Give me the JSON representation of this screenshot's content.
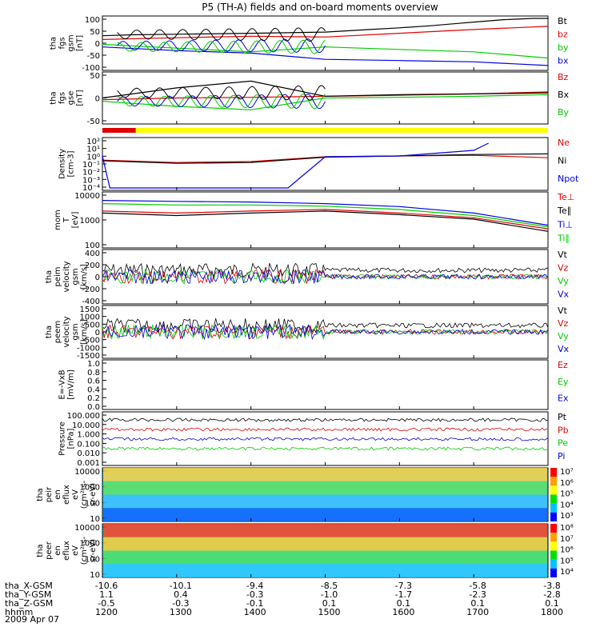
{
  "title": "P5 (TH-A) fields and on-board moments overview",
  "date": "2009 Apr 07",
  "orbit": {
    "labels": [
      "tha_X-GSM",
      "tha_Y-GSM",
      "tha_Z-GSM",
      "hhmm"
    ],
    "columns": [
      [
        "-10.6",
        "1.1",
        "-0.5",
        "1200"
      ],
      [
        "-10.1",
        "0.4",
        "-0.3",
        "1300"
      ],
      [
        "-9.4",
        "-0.3",
        "-0.1",
        "1400"
      ],
      [
        "-8.5",
        "-1.0",
        "0.1",
        "1500"
      ],
      [
        "-7.3",
        "-1.7",
        "0.1",
        "1600"
      ],
      [
        "-5.8",
        "-2.3",
        "0.1",
        "1700"
      ],
      [
        "-3.8",
        "-2.8",
        "0.1",
        "1800"
      ]
    ]
  },
  "colors": {
    "black": "#000000",
    "red": "#e00000",
    "green": "#00cc00",
    "blue": "#0000e0",
    "yellow": "#ffff00"
  },
  "chart_data": [
    {
      "type": "line",
      "ylabel": [
        "tha",
        "fgs",
        "gsm",
        "[nT]"
      ],
      "yticks": [
        "100",
        "50",
        "0",
        "-50",
        "-100"
      ],
      "ylim": [
        -100,
        100
      ],
      "x_range": [
        "1200",
        "1800"
      ],
      "series": [
        {
          "name": "Bt",
          "color": "#000000",
          "x": [
            1200,
            1240,
            1300,
            1400,
            1500,
            1530,
            1560,
            1600,
            1640,
            1680,
            1700,
            1740,
            1780,
            1800
          ],
          "y": [
            30,
            34,
            36,
            40,
            45,
            50,
            55,
            62,
            70,
            80,
            85,
            95,
            100,
            100
          ]
        },
        {
          "name": "bz",
          "color": "#e00000",
          "x": [
            1200,
            1300,
            1400,
            1500,
            1600,
            1700,
            1800
          ],
          "y": [
            15,
            22,
            28,
            25,
            40,
            55,
            68
          ]
        },
        {
          "name": "by",
          "color": "#00cc00",
          "x": [
            1200,
            1300,
            1400,
            1500,
            1600,
            1700,
            1800
          ],
          "y": [
            -5,
            -20,
            -35,
            -15,
            -25,
            -35,
            -60
          ]
        },
        {
          "name": "bx",
          "color": "#0000e0",
          "x": [
            1200,
            1300,
            1400,
            1500,
            1600,
            1700,
            1800
          ],
          "y": [
            -15,
            -30,
            -40,
            -65,
            -70,
            -75,
            -90
          ]
        }
      ]
    },
    {
      "type": "line",
      "ylabel": [
        "tha",
        "fgs",
        "gse",
        "[nT]"
      ],
      "yticks": [
        "50",
        "0",
        "-50"
      ],
      "ylim": [
        -60,
        80
      ],
      "series": [
        {
          "name": "Bz",
          "color": "#e00000",
          "x": [
            1200,
            1300,
            1400,
            1500,
            1600,
            1700,
            1800
          ],
          "y": [
            5,
            10,
            12,
            15,
            18,
            22,
            28
          ]
        },
        {
          "name": "Bx",
          "color": "#000000",
          "x": [
            1200,
            1300,
            1400,
            1500,
            1600,
            1700,
            1800
          ],
          "y": [
            10,
            40,
            60,
            15,
            20,
            22,
            25
          ]
        },
        {
          "name": "By",
          "color": "#00cc00",
          "x": [
            1200,
            1300,
            1400,
            1500,
            1600,
            1700,
            1800
          ],
          "y": [
            0,
            -15,
            -25,
            10,
            12,
            15,
            20
          ]
        }
      ]
    },
    {
      "type": "line",
      "ylabel": [
        "Density",
        "[cm-3]"
      ],
      "yticks": [
        "10²",
        "10¹",
        "10⁰",
        "10⁻¹",
        "10⁻²",
        "10⁻³",
        "10⁻⁴"
      ],
      "ylog": true,
      "series": [
        {
          "name": "Ne",
          "color": "#e00000",
          "x": [
            1200,
            1300,
            1400,
            1500,
            1600,
            1700,
            1800
          ],
          "y": [
            0.3,
            0.15,
            0.2,
            0.8,
            1.0,
            1.2,
            0.6
          ]
        },
        {
          "name": "Ni",
          "color": "#000000",
          "x": [
            1200,
            1300,
            1400,
            1500,
            1600,
            1700,
            1800
          ],
          "y": [
            0.25,
            0.12,
            0.15,
            0.7,
            1.0,
            1.5,
            1.8
          ]
        },
        {
          "name": "Npot",
          "color": "#0000e0",
          "x": [
            1200,
            1210,
            1300,
            1400,
            1450,
            1500,
            1600,
            1700,
            1720
          ],
          "y": [
            1.0,
            0.0001,
            0.0001,
            0.0001,
            0.0001,
            0.8,
            1.0,
            5,
            40
          ]
        }
      ]
    },
    {
      "type": "line",
      "ylabel": [
        "mom",
        "T",
        "[eV]"
      ],
      "yticks": [
        "10000",
        "1000",
        "100"
      ],
      "ylog": true,
      "series": [
        {
          "name": "Te⊥",
          "color": "#e00000",
          "x": [
            1200,
            1300,
            1400,
            1500,
            1600,
            1700,
            1800
          ],
          "y": [
            1500,
            1200,
            1500,
            1800,
            1200,
            700,
            200
          ]
        },
        {
          "name": "Te∥",
          "color": "#000000",
          "x": [
            1200,
            1300,
            1400,
            1500,
            1600,
            1700,
            1800
          ],
          "y": [
            1200,
            900,
            1200,
            1500,
            1000,
            600,
            150
          ]
        },
        {
          "name": "Ti⊥",
          "color": "#0000e0",
          "x": [
            1200,
            1300,
            1400,
            1500,
            1600,
            1700,
            1800
          ],
          "y": [
            5000,
            4500,
            4200,
            3500,
            2500,
            1200,
            300
          ]
        },
        {
          "name": "Ti∥",
          "color": "#00cc00",
          "x": [
            1200,
            1300,
            1400,
            1500,
            1600,
            1700,
            1800
          ],
          "y": [
            3500,
            3000,
            3000,
            2600,
            1800,
            900,
            250
          ]
        }
      ]
    },
    {
      "type": "line",
      "ylabel": [
        "tha",
        "peim",
        "velocity",
        "gsm",
        "[km/s]"
      ],
      "yticks": [
        "400",
        "200",
        "0",
        "-200",
        "-400"
      ],
      "legend": [
        "Vt",
        "Vz",
        "Vy",
        "Vx"
      ]
    },
    {
      "type": "line",
      "ylabel": [
        "tha",
        "peem",
        "velocity",
        "gsm",
        "[km/s]"
      ],
      "yticks": [
        "1500",
        "1000",
        "500",
        "0",
        "-500",
        "-1000",
        "-1500"
      ],
      "legend": [
        "Vt",
        "Vz",
        "Vy",
        "Vx"
      ]
    },
    {
      "type": "line",
      "ylabel": [
        "E=-VxB",
        "[mV/m]"
      ],
      "yticks": [
        "1.0",
        "0.8",
        "0.6",
        "0.4",
        "0.2",
        "0.0"
      ],
      "legend": [
        "Ez",
        "Ey",
        "Ex"
      ]
    },
    {
      "type": "line",
      "ylabel": [
        "Pressure",
        "[nPa]"
      ],
      "yticks": [
        "100.000",
        "10.000",
        "1.000",
        "0.100",
        "0.010",
        "0.001"
      ],
      "legend": [
        "Pt",
        "Pb",
        "Pe",
        "Pi"
      ]
    },
    {
      "type": "heatmap",
      "ylabel": [
        "tha",
        "peir",
        "en",
        "eflux",
        "eV",
        "(cm²-s-",
        "sr-eV)"
      ],
      "yticks": [
        "10000",
        "1000",
        "100",
        "10"
      ],
      "colorbar": [
        "10⁷",
        "10⁶",
        "10⁵",
        "10⁴",
        "10³"
      ]
    },
    {
      "type": "heatmap",
      "ylabel": [
        "tha",
        "peer",
        "en",
        "eflux",
        "eV",
        "(cm²-s-",
        "sr-eV)"
      ],
      "yticks": [
        "10000",
        "1000",
        "100",
        "10"
      ],
      "colorbar": [
        "10⁸",
        "10⁷",
        "10⁶",
        "10⁵",
        "10⁴"
      ]
    }
  ]
}
